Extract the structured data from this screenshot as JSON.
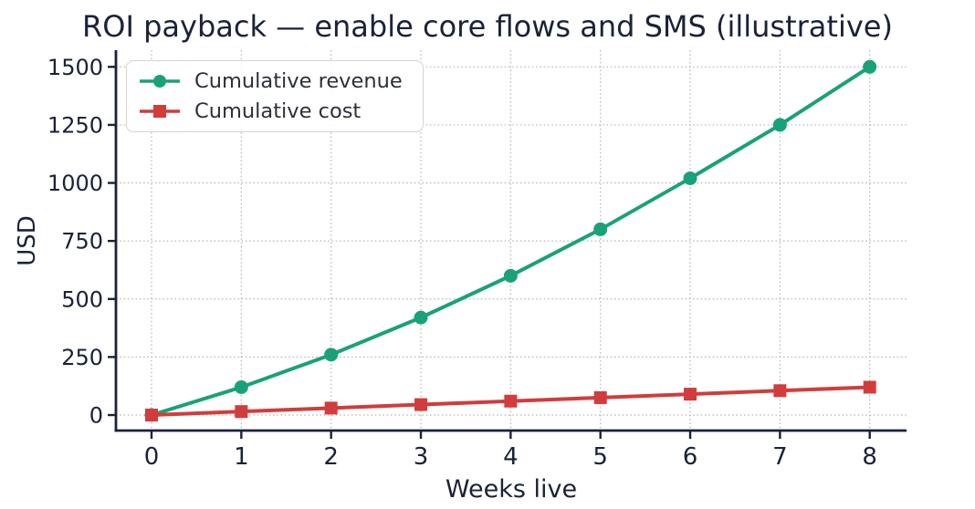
{
  "chart_data": {
    "type": "line",
    "title": "ROI payback — enable core flows and SMS (illustrative)",
    "xlabel": "Weeks live",
    "ylabel": "USD",
    "x": [
      0,
      1,
      2,
      3,
      4,
      5,
      6,
      7,
      8
    ],
    "xticks": [
      0,
      1,
      2,
      3,
      4,
      5,
      6,
      7,
      8
    ],
    "yticks": [
      0,
      250,
      500,
      750,
      1000,
      1250,
      1500
    ],
    "ylim": [
      0,
      1500
    ],
    "grid": true,
    "grid_style": "dotted",
    "legend_position": "upper-left",
    "series": [
      {
        "name": "Cumulative revenue",
        "color": "#1aa179",
        "marker": "circle",
        "values": [
          0,
          120,
          260,
          420,
          600,
          800,
          1020,
          1250,
          1500
        ]
      },
      {
        "name": "Cumulative cost",
        "color": "#d23c3c",
        "marker": "square",
        "values": [
          0,
          15,
          30,
          45,
          60,
          75,
          90,
          105,
          120
        ]
      }
    ],
    "colors": {
      "text": "#1a2238",
      "grid": "#b3b3b3",
      "spine": "#1a2238",
      "legend_text": "#2c3038"
    }
  }
}
